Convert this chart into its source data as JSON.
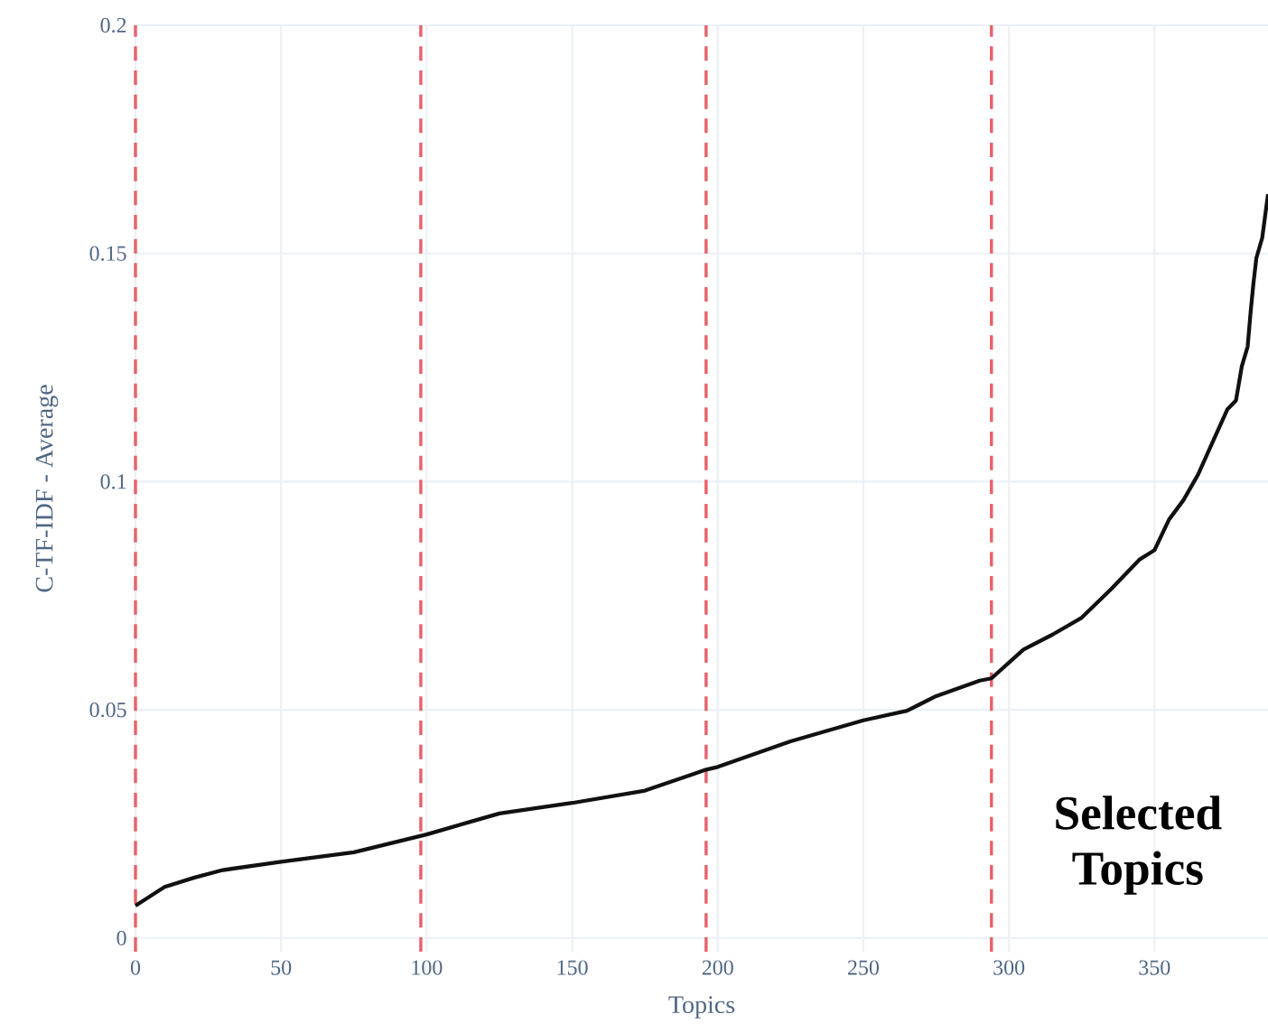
{
  "chart_data": {
    "type": "line",
    "xlabel": "Topics",
    "ylabel": "C-TF-IDF - Average",
    "x": [
      0,
      10,
      20,
      30,
      50,
      75,
      100,
      125,
      150,
      175,
      196,
      200,
      225,
      250,
      265,
      275,
      290,
      294,
      305,
      315,
      325,
      335,
      345,
      350,
      355,
      360,
      365,
      370,
      375,
      378,
      380,
      382,
      383,
      384,
      385,
      387,
      389
    ],
    "series": [
      {
        "color": "#111111",
        "values": [
          0.0071,
          0.0112,
          0.0132,
          0.0149,
          0.0167,
          0.0188,
          0.0227,
          0.0273,
          0.0296,
          0.0323,
          0.0369,
          0.0375,
          0.0431,
          0.0477,
          0.0498,
          0.053,
          0.0564,
          0.0569,
          0.0632,
          0.0665,
          0.0702,
          0.0764,
          0.083,
          0.085,
          0.0917,
          0.096,
          0.1016,
          0.1087,
          0.1158,
          0.1178,
          0.1253,
          0.1296,
          0.137,
          0.1435,
          0.149,
          0.1534,
          0.163
        ]
      }
    ],
    "xlim": [
      0,
      389
    ],
    "ylim": [
      -0.003,
      0.2
    ],
    "xticks": [
      0,
      50,
      100,
      150,
      200,
      250,
      300,
      350
    ],
    "yticks": [
      0,
      0.05,
      0.1,
      0.15,
      0.2
    ],
    "grid": true,
    "marker": "none",
    "line_style": "solid",
    "ref_lines": [
      {
        "axis": "x",
        "value": 0,
        "color": "#e8636b",
        "line_style": "dashed"
      },
      {
        "axis": "x",
        "value": 98,
        "color": "#e8636b",
        "line_style": "dashed"
      },
      {
        "axis": "x",
        "value": 196,
        "color": "#e8636b",
        "line_style": "dashed"
      },
      {
        "axis": "x",
        "value": 294,
        "color": "#e8636b",
        "line_style": "dashed"
      }
    ],
    "annotations": [
      "Selected Topics"
    ]
  }
}
